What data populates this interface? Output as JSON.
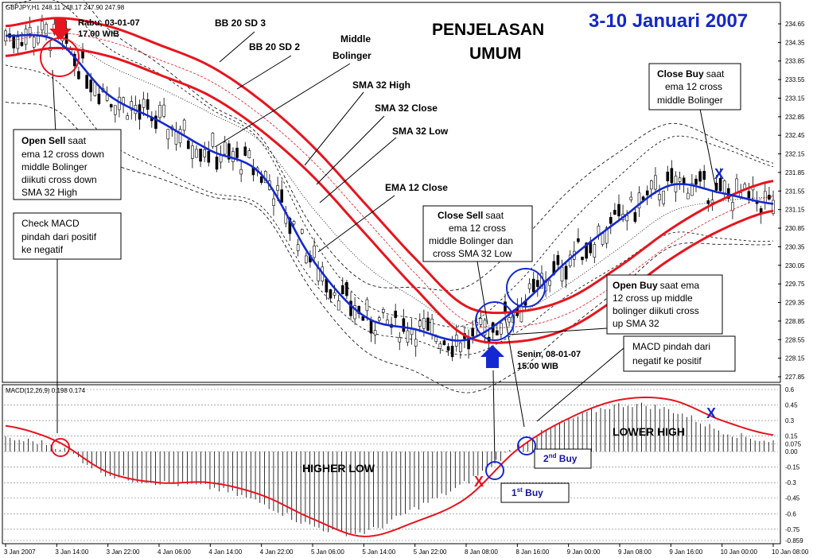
{
  "header": {
    "symbol_info": "GBPJPY,H1  248.11 248.17 247.90 247.98",
    "title_main": "PENJELASAN",
    "title_sub": "UMUM",
    "date_title": "3-10 Januari 2007"
  },
  "price_axis": [
    "234.65",
    "234.35",
    "233.85",
    "233.55",
    "233.15",
    "232.85",
    "232.45",
    "232.15",
    "231.85",
    "231.55",
    "231.15",
    "230.85",
    "230.35",
    "230.05",
    "229.75",
    "229.35",
    "228.85",
    "228.55",
    "228.15",
    "227.85"
  ],
  "macd_axis": [
    "0.6",
    "0.45",
    "0.3",
    "0.15",
    "0.075",
    "0.00",
    "-0.15",
    "-0.3",
    "-0.45",
    "-0.6",
    "-0.75",
    "-0.859"
  ],
  "time_axis": [
    "3 Jan 2007",
    "3 Jan 14:00",
    "3 Jan 22:00",
    "4 Jan 06:00",
    "4 Jan 14:00",
    "4 Jan 22:00",
    "5 Jan 06:00",
    "5 Jan 14:00",
    "5 Jan 22:00",
    "8 Jan 08:00",
    "8 Jan 16:00",
    "9 Jan 00:00",
    "9 Jan 08:00",
    "9 Jan 16:00",
    "10 Jan 00:00",
    "10 Jan 08:00"
  ],
  "macd_header": "MACD(12,26,9) 0.198 0.174",
  "annotations": {
    "bb20sd3": "BB 20 SD 3",
    "bb20sd2": "BB 20 SD 2",
    "middle_bol_1": "Middle",
    "middle_bol_2": "Bolinger",
    "sma_high": "SMA 32 High",
    "sma_close": "SMA 32 Close",
    "sma_low": "SMA 32 Low",
    "ema12": "EMA 12 Close",
    "rabu_1": "Rabu, 03-01-07",
    "rabu_2": "17.00 WIB",
    "senin_1": "Senin, 08-01-07",
    "senin_2": "15.00 WIB",
    "open_sell_bold": "Open Sell",
    "open_sell_1": "saat",
    "open_sell_2": "ema 12 cross down",
    "open_sell_3": "middle Bolinger",
    "open_sell_4": "diikuti cross down",
    "open_sell_5": "SMA 32 High",
    "check_1": "Check MACD",
    "check_2": "pindah dari positif",
    "check_3": "ke negatif",
    "close_sell_bold": "Close Sell",
    "close_sell_1": "saat",
    "close_sell_2": "ema 12 cross",
    "close_sell_3": "middle Bolinger dan",
    "close_sell_4": "cross SMA 32 Low",
    "close_buy_bold": "Close Buy",
    "close_buy_1": "saat",
    "close_buy_2": "ema 12 cross",
    "close_buy_3": "middle Bolinger",
    "open_buy_bold": "Open Buy",
    "open_buy_1": "saat ema",
    "open_buy_2": "12 cross up middle",
    "open_buy_3": "bolinger diikuti cross",
    "open_buy_4": "up SMA 32",
    "macd_pindah_1": "MACD pindah dari",
    "macd_pindah_2": "negatif ke positif",
    "higher_low": "HIGHER LOW",
    "lower_high": "LOWER HIGH",
    "buy1": "1",
    "buy1_sup": "st",
    "buy1_rest": " Buy",
    "buy2": "2",
    "buy2_sup": "nd",
    "buy2_rest": " Buy",
    "x_mark": "X"
  },
  "colors": {
    "sma": "#e8141e",
    "ema": "#1428d2",
    "circle_red": "#e8141e",
    "circle_blue": "#1428d2",
    "arrow_red": "#e8141e",
    "arrow_blue": "#1428d2",
    "date_title": "#1428c8",
    "label_blue": "#1414a0"
  },
  "chart_data": [
    {
      "type": "line",
      "title": "",
      "series": [
        {
          "name": "EMA 12 Close",
          "x": [
            "3 Jan 2007",
            "3 Jan 14:00",
            "3 Jan 22:00",
            "4 Jan 06:00",
            "4 Jan 14:00",
            "4 Jan 22:00",
            "5 Jan 06:00",
            "5 Jan 14:00",
            "5 Jan 22:00",
            "8 Jan 08:00",
            "8 Jan 16:00",
            "9 Jan 00:00",
            "9 Jan 08:00",
            "9 Jan 16:00",
            "10 Jan 00:00",
            "10 Jan 08:00"
          ],
          "values": [
            234.3,
            234.2,
            233.2,
            232.7,
            232.15,
            231.7,
            230.1,
            229.05,
            228.8,
            228.6,
            229.2,
            230.1,
            230.85,
            231.5,
            231.35,
            231.15
          ]
        },
        {
          "name": "SMA 32 Close",
          "x": [
            "3 Jan 2007",
            "3 Jan 14:00",
            "3 Jan 22:00",
            "4 Jan 06:00",
            "4 Jan 14:00",
            "4 Jan 22:00",
            "5 Jan 06:00",
            "5 Jan 14:00",
            "5 Jan 22:00",
            "8 Jan 08:00",
            "8 Jan 16:00",
            "9 Jan 00:00",
            "9 Jan 08:00",
            "9 Jan 16:00",
            "10 Jan 00:00",
            "10 Jan 08:00"
          ],
          "values": [
            234.2,
            234.35,
            234.2,
            233.85,
            233.45,
            232.8,
            231.95,
            230.9,
            229.85,
            228.95,
            228.85,
            229.1,
            229.7,
            230.4,
            230.95,
            231.3
          ]
        }
      ],
      "ylim": [
        227.85,
        234.85
      ]
    },
    {
      "type": "bar",
      "title": "",
      "series": [
        {
          "name": "MACD",
          "x": [
            "3 Jan 2007",
            "3 Jan 14:00",
            "3 Jan 22:00",
            "4 Jan 06:00",
            "4 Jan 14:00",
            "4 Jan 22:00",
            "5 Jan 06:00",
            "5 Jan 14:00",
            "5 Jan 22:00",
            "8 Jan 08:00",
            "8 Jan 16:00",
            "9 Jan 00:00",
            "9 Jan 08:00",
            "9 Jan 16:00",
            "10 Jan 00:00",
            "10 Jan 08:00"
          ],
          "values": [
            0.12,
            0.05,
            -0.22,
            -0.3,
            -0.35,
            -0.5,
            -0.72,
            -0.78,
            -0.55,
            -0.3,
            0.05,
            0.3,
            0.45,
            0.4,
            0.2,
            0.1
          ]
        },
        {
          "name": "Signal",
          "x": [
            "3 Jan 2007",
            "3 Jan 14:00",
            "3 Jan 22:00",
            "4 Jan 06:00",
            "4 Jan 14:00",
            "4 Jan 22:00",
            "5 Jan 06:00",
            "5 Jan 14:00",
            "5 Jan 22:00",
            "8 Jan 08:00",
            "8 Jan 16:00",
            "9 Jan 00:00",
            "9 Jan 08:00",
            "9 Jan 16:00",
            "10 Jan 00:00",
            "10 Jan 08:00"
          ],
          "values": [
            0.25,
            0.1,
            -0.2,
            -0.3,
            -0.3,
            -0.42,
            -0.65,
            -0.82,
            -0.68,
            -0.45,
            0.02,
            0.32,
            0.5,
            0.5,
            0.3,
            0.16
          ]
        }
      ],
      "ylim": [
        -0.859,
        0.6
      ]
    }
  ]
}
